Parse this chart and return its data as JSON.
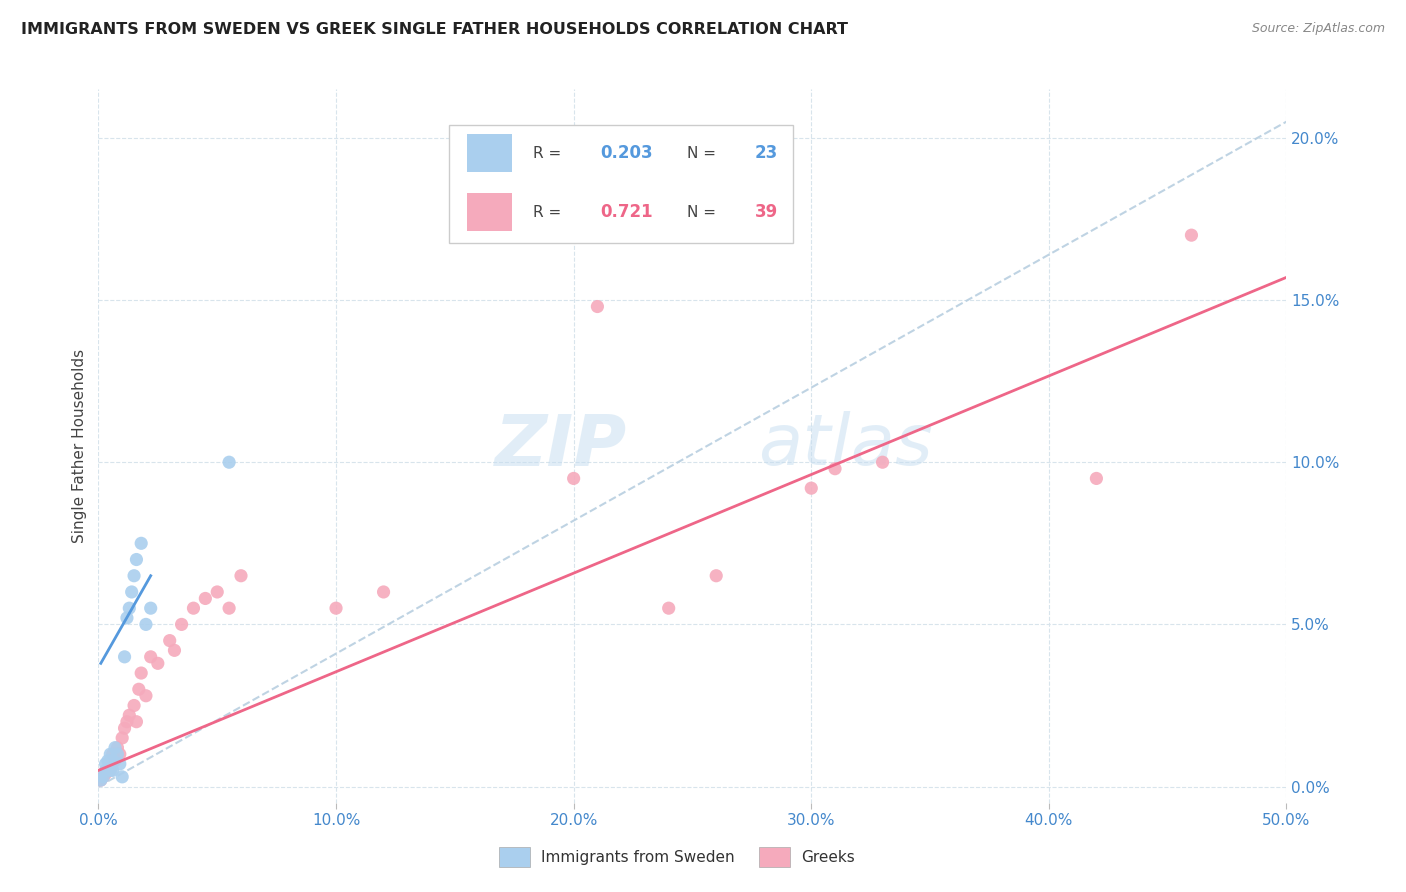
{
  "title": "IMMIGRANTS FROM SWEDEN VS GREEK SINGLE FATHER HOUSEHOLDS CORRELATION CHART",
  "source": "Source: ZipAtlas.com",
  "ylabel": "Single Father Households",
  "legend_label_1": "Immigrants from Sweden",
  "legend_label_2": "Greeks",
  "r1": "0.203",
  "n1": "23",
  "r2": "0.721",
  "n2": "39",
  "color_blue": "#aacfee",
  "color_pink": "#f5aabc",
  "color_blue_line": "#5599dd",
  "color_pink_line": "#ee6688",
  "color_dashed": "#b8cfe0",
  "watermark_zip": "ZIP",
  "watermark_atlas": "atlas",
  "xlim": [
    0,
    0.5
  ],
  "ylim": [
    -0.005,
    0.215
  ],
  "x_ticks": [
    0.0,
    0.1,
    0.2,
    0.3,
    0.4,
    0.5
  ],
  "y_ticks_right": [
    0.0,
    0.05,
    0.1,
    0.15,
    0.2
  ],
  "sweden_x": [
    0.001,
    0.002,
    0.003,
    0.003,
    0.004,
    0.005,
    0.005,
    0.006,
    0.006,
    0.007,
    0.008,
    0.009,
    0.01,
    0.011,
    0.012,
    0.013,
    0.014,
    0.015,
    0.016,
    0.018,
    0.02,
    0.022,
    0.055
  ],
  "sweden_y": [
    0.002,
    0.003,
    0.005,
    0.007,
    0.008,
    0.005,
    0.01,
    0.005,
    0.008,
    0.012,
    0.01,
    0.007,
    0.003,
    0.04,
    0.052,
    0.055,
    0.06,
    0.065,
    0.07,
    0.075,
    0.05,
    0.055,
    0.1
  ],
  "greek_x": [
    0.001,
    0.002,
    0.003,
    0.004,
    0.005,
    0.006,
    0.007,
    0.008,
    0.009,
    0.01,
    0.011,
    0.012,
    0.013,
    0.015,
    0.016,
    0.017,
    0.018,
    0.02,
    0.022,
    0.025,
    0.03,
    0.032,
    0.035,
    0.04,
    0.045,
    0.05,
    0.055,
    0.06,
    0.1,
    0.12,
    0.2,
    0.21,
    0.24,
    0.26,
    0.3,
    0.31,
    0.33,
    0.42,
    0.46
  ],
  "greek_y": [
    0.002,
    0.003,
    0.004,
    0.005,
    0.005,
    0.01,
    0.008,
    0.012,
    0.01,
    0.015,
    0.018,
    0.02,
    0.022,
    0.025,
    0.02,
    0.03,
    0.035,
    0.028,
    0.04,
    0.038,
    0.045,
    0.042,
    0.05,
    0.055,
    0.058,
    0.06,
    0.055,
    0.065,
    0.055,
    0.06,
    0.095,
    0.148,
    0.055,
    0.065,
    0.092,
    0.098,
    0.1,
    0.095,
    0.17
  ],
  "sweden_line_x": [
    0.001,
    0.022
  ],
  "sweden_line_y": [
    0.038,
    0.065
  ],
  "greek_line_x": [
    0.0,
    0.5
  ],
  "greek_line_y": [
    0.005,
    0.157
  ],
  "dash_line_x": [
    0.0,
    0.5
  ],
  "dash_line_y": [
    0.0,
    0.205
  ]
}
